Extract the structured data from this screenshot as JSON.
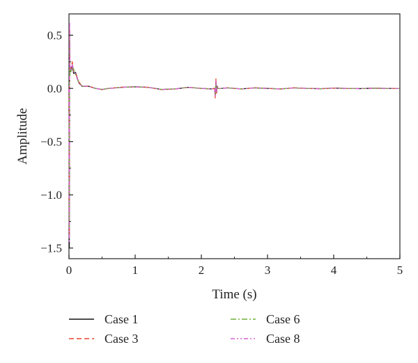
{
  "chart_data": {
    "type": "line",
    "title": "",
    "xlabel": "Time (s)",
    "ylabel": "Amplitude",
    "xlim": [
      0,
      5
    ],
    "ylim": [
      -1.6,
      0.7
    ],
    "grid": false,
    "legend_position": "bottom",
    "xticks": [
      0,
      1,
      2,
      3,
      4,
      5
    ],
    "xtick_labels": [
      "0",
      "1",
      "2",
      "3",
      "4",
      "5"
    ],
    "yticks": [
      0.5,
      0.0,
      -0.5,
      -1.0,
      -1.5
    ],
    "ytick_labels": [
      "0.5",
      "0.0",
      "−0.5",
      "−1.0",
      "−1.5"
    ],
    "series": [
      {
        "name": "Case 1",
        "color": "#111111",
        "dash": "solid",
        "x": [
          0,
          0.005,
          0.01,
          0.015,
          0.02,
          0.03,
          0.05,
          0.07,
          0.1,
          0.15,
          0.2,
          0.3,
          0.4,
          0.5,
          0.6,
          0.8,
          1.0,
          1.2,
          1.4,
          1.6,
          1.8,
          2.0,
          2.15,
          2.2,
          2.21,
          2.22,
          2.23,
          2.24,
          2.25,
          2.3,
          2.4,
          2.6,
          2.8,
          3.0,
          3.2,
          3.4,
          3.6,
          3.8,
          4.0,
          4.2,
          4.4,
          4.6,
          4.8,
          5.0
        ],
        "y": [
          0,
          -1.5,
          0.4,
          0.15,
          0.2,
          0.16,
          0.22,
          0.14,
          0.15,
          0.05,
          0.02,
          0.02,
          0.0,
          -0.01,
          0.0,
          0.01,
          0.015,
          0.01,
          -0.01,
          -0.005,
          0.01,
          0.0,
          -0.005,
          0.0,
          -0.07,
          0.07,
          -0.04,
          0.02,
          0.0,
          0.0,
          0.005,
          -0.005,
          0.005,
          0.0,
          -0.005,
          0.005,
          0.0,
          -0.003,
          0.003,
          0.0,
          -0.002,
          0.002,
          0.0,
          0.0
        ]
      },
      {
        "name": "Case 3",
        "color": "#e8452a",
        "dash": "dashed",
        "x": [
          0,
          0.005,
          0.01,
          0.015,
          0.02,
          0.03,
          0.05,
          0.07,
          0.1,
          0.15,
          0.2,
          0.3,
          0.4,
          0.5,
          0.6,
          0.8,
          1.0,
          1.2,
          1.4,
          1.6,
          1.8,
          2.0,
          2.15,
          2.2,
          2.21,
          2.22,
          2.23,
          2.24,
          2.25,
          2.3,
          2.4,
          2.6,
          2.8,
          3.0,
          3.2,
          3.4,
          3.6,
          3.8,
          4.0,
          4.2,
          4.4,
          4.6,
          4.8,
          5.0
        ],
        "y": [
          0,
          -1.4,
          0.55,
          0.2,
          0.22,
          0.18,
          0.25,
          0.16,
          0.14,
          0.06,
          0.02,
          0.02,
          0.0,
          -0.012,
          0.0,
          0.012,
          0.016,
          0.01,
          -0.012,
          -0.006,
          0.011,
          0.0,
          -0.006,
          0.0,
          -0.09,
          0.09,
          -0.05,
          0.02,
          0.0,
          0.0,
          0.006,
          -0.006,
          0.006,
          0.0,
          -0.006,
          0.006,
          0.0,
          -0.003,
          0.003,
          0.0,
          -0.002,
          0.002,
          0.0,
          0.0
        ]
      },
      {
        "name": "Case 6",
        "color": "#6fae3a",
        "dash": "dashdot",
        "x": [
          0,
          0.005,
          0.01,
          0.015,
          0.02,
          0.03,
          0.05,
          0.07,
          0.1,
          0.15,
          0.2,
          0.3,
          0.4,
          0.5,
          0.6,
          0.8,
          1.0,
          1.2,
          1.4,
          1.6,
          1.8,
          2.0,
          2.15,
          2.2,
          2.21,
          2.22,
          2.23,
          2.24,
          2.25,
          2.3,
          2.4,
          2.6,
          2.8,
          3.0,
          3.2,
          3.4,
          3.6,
          3.8,
          4.0,
          4.2,
          4.4,
          4.6,
          4.8,
          5.0
        ],
        "y": [
          0,
          -1.3,
          0.5,
          0.12,
          0.2,
          0.15,
          0.2,
          0.18,
          0.13,
          0.05,
          0.02,
          0.02,
          0.0,
          -0.01,
          0.0,
          0.01,
          0.015,
          0.01,
          -0.01,
          -0.005,
          0.01,
          0.0,
          -0.005,
          0.0,
          -0.06,
          0.06,
          -0.03,
          0.015,
          0.0,
          0.0,
          0.005,
          -0.005,
          0.005,
          0.0,
          -0.005,
          0.005,
          0.0,
          -0.003,
          0.003,
          0.0,
          -0.002,
          0.002,
          0.0,
          0.0
        ]
      },
      {
        "name": "Case 8",
        "color": "#d75fd0",
        "dash": "dashdotdot",
        "x": [
          0,
          0.005,
          0.01,
          0.015,
          0.02,
          0.03,
          0.05,
          0.07,
          0.1,
          0.15,
          0.2,
          0.3,
          0.4,
          0.5,
          0.6,
          0.8,
          1.0,
          1.2,
          1.4,
          1.6,
          1.8,
          2.0,
          2.15,
          2.2,
          2.21,
          2.22,
          2.23,
          2.24,
          2.25,
          2.3,
          2.4,
          2.6,
          2.8,
          3.0,
          3.2,
          3.4,
          3.6,
          3.8,
          4.0,
          4.2,
          4.4,
          4.6,
          4.8,
          5.0
        ],
        "y": [
          0,
          -1.45,
          0.62,
          0.18,
          0.21,
          0.17,
          0.23,
          0.15,
          0.14,
          0.05,
          0.02,
          0.02,
          0.0,
          -0.011,
          0.0,
          0.011,
          0.015,
          0.01,
          -0.011,
          -0.005,
          0.01,
          0.0,
          -0.005,
          0.0,
          -0.08,
          0.08,
          -0.045,
          0.02,
          0.0,
          0.0,
          0.005,
          -0.005,
          0.005,
          0.0,
          -0.005,
          0.005,
          0.0,
          -0.003,
          0.003,
          0.0,
          -0.002,
          0.002,
          0.0,
          0.0
        ]
      }
    ]
  }
}
